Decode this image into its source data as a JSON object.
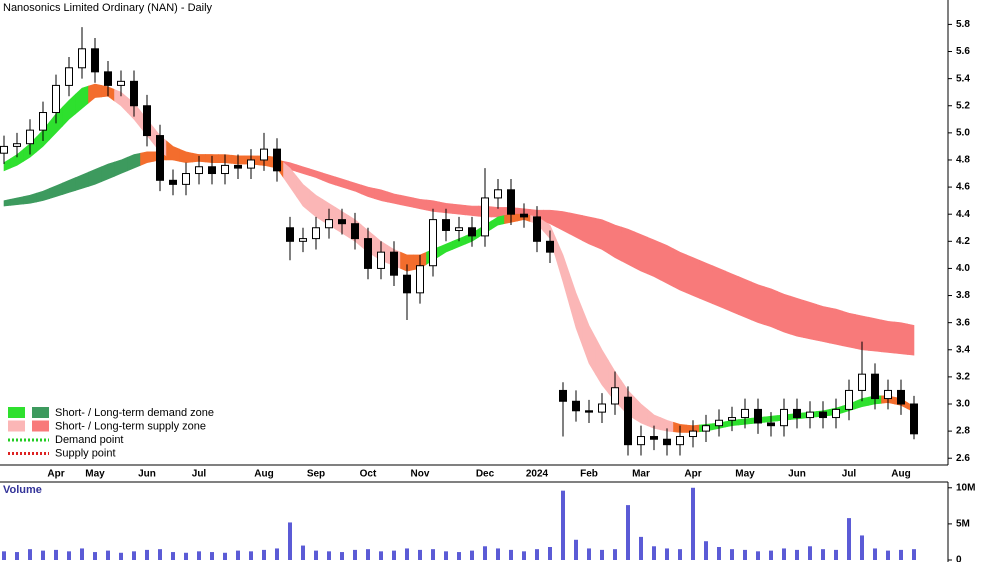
{
  "chart_data": [
    {
      "type": "candlestick",
      "title": "Nanosonics Limited Ordinary (NAN) - Daily",
      "categories": [
        null,
        null,
        null,
        null,
        "Apr",
        null,
        null,
        "May",
        null,
        null,
        null,
        "Jun",
        null,
        null,
        null,
        "Jul",
        null,
        null,
        null,
        null,
        "Aug",
        null,
        null,
        null,
        "Sep",
        null,
        null,
        null,
        "Oct",
        null,
        null,
        null,
        "Nov",
        null,
        null,
        null,
        null,
        "Dec",
        null,
        null,
        null,
        "2024",
        null,
        null,
        null,
        "Feb",
        null,
        null,
        null,
        "Mar",
        null,
        null,
        null,
        "Apr",
        null,
        null,
        null,
        "May",
        null,
        null,
        null,
        "Jun",
        null,
        null,
        null,
        "Jul",
        null,
        null,
        null,
        "Aug",
        null
      ],
      "open": [
        4.85,
        4.9,
        4.92,
        5.02,
        5.15,
        5.35,
        5.48,
        5.62,
        5.45,
        5.35,
        5.38,
        5.2,
        4.98,
        4.65,
        4.62,
        4.7,
        4.75,
        4.7,
        4.76,
        4.74,
        4.8,
        4.88,
        4.3,
        4.2,
        4.22,
        4.3,
        4.36,
        4.33,
        4.22,
        4.0,
        4.12,
        3.95,
        3.82,
        4.02,
        4.36,
        4.28,
        4.3,
        4.24,
        4.52,
        4.58,
        4.4,
        4.38,
        4.2,
        3.1,
        3.02,
        2.95,
        2.94,
        3.0,
        3.05,
        2.7,
        2.76,
        2.74,
        2.7,
        2.76,
        2.8,
        2.84,
        2.88,
        2.9,
        2.96,
        2.86,
        2.84,
        2.96,
        2.9,
        2.94,
        2.9,
        2.96,
        3.1,
        3.22,
        3.04,
        3.1,
        3.0
      ],
      "high": [
        4.98,
        5.0,
        5.1,
        5.23,
        5.43,
        5.56,
        5.78,
        5.7,
        5.53,
        5.46,
        5.46,
        5.28,
        5.06,
        4.73,
        4.78,
        4.83,
        4.83,
        4.84,
        4.84,
        4.88,
        5.0,
        4.96,
        4.38,
        4.3,
        4.38,
        4.44,
        4.44,
        4.41,
        4.3,
        4.2,
        4.2,
        4.03,
        4.1,
        4.44,
        4.44,
        4.38,
        4.38,
        4.74,
        4.66,
        4.66,
        4.48,
        4.46,
        4.28,
        3.16,
        3.1,
        3.03,
        3.08,
        3.24,
        3.13,
        2.84,
        2.84,
        2.82,
        2.84,
        2.88,
        2.92,
        2.96,
        2.98,
        3.04,
        3.04,
        2.94,
        3.04,
        3.04,
        3.02,
        3.02,
        3.04,
        3.18,
        3.46,
        3.3,
        3.18,
        3.18,
        3.06
      ],
      "low": [
        4.77,
        4.82,
        4.84,
        4.94,
        5.07,
        5.27,
        5.4,
        5.37,
        5.27,
        5.27,
        5.12,
        4.9,
        4.57,
        4.54,
        4.54,
        4.62,
        4.62,
        4.62,
        4.66,
        4.66,
        4.72,
        4.64,
        4.06,
        4.12,
        4.14,
        4.22,
        4.25,
        4.14,
        3.92,
        3.92,
        3.87,
        3.62,
        3.74,
        3.94,
        4.2,
        4.2,
        4.16,
        4.16,
        4.44,
        4.32,
        4.3,
        4.12,
        4.04,
        2.76,
        2.87,
        2.86,
        2.86,
        2.92,
        2.62,
        2.62,
        2.66,
        2.62,
        2.62,
        2.68,
        2.72,
        2.76,
        2.8,
        2.82,
        2.78,
        2.76,
        2.76,
        2.82,
        2.82,
        2.82,
        2.82,
        2.88,
        3.02,
        2.96,
        2.96,
        2.92,
        2.74
      ],
      "close": [
        4.9,
        4.92,
        5.02,
        5.15,
        5.35,
        5.48,
        5.62,
        5.45,
        5.35,
        5.38,
        5.2,
        4.98,
        4.65,
        4.62,
        4.7,
        4.75,
        4.7,
        4.76,
        4.74,
        4.8,
        4.88,
        4.72,
        4.2,
        4.22,
        4.3,
        4.36,
        4.33,
        4.22,
        4.0,
        4.12,
        3.95,
        3.82,
        4.02,
        4.36,
        4.28,
        4.3,
        4.24,
        4.52,
        4.58,
        4.4,
        4.38,
        4.2,
        4.12,
        3.02,
        2.95,
        2.94,
        3.0,
        3.12,
        2.7,
        2.76,
        2.74,
        2.7,
        2.76,
        2.8,
        2.84,
        2.88,
        2.9,
        2.96,
        2.86,
        2.84,
        2.96,
        2.9,
        2.94,
        2.9,
        2.96,
        3.1,
        3.22,
        3.04,
        3.1,
        3.0,
        2.78
      ],
      "up_color": "#ffffff",
      "down_color": "#000000",
      "wick_color": "#000000",
      "zones": {
        "long_term": {
          "upper": [
            4.5,
            4.52,
            4.54,
            4.57,
            4.61,
            4.65,
            4.69,
            4.73,
            4.77,
            4.8,
            4.84,
            4.86,
            4.86,
            4.85,
            4.85,
            4.84,
            4.84,
            4.84,
            4.83,
            4.83,
            4.82,
            4.8,
            4.78,
            4.75,
            4.72,
            4.69,
            4.66,
            4.63,
            4.6,
            4.58,
            4.55,
            4.53,
            4.51,
            4.5,
            4.48,
            4.47,
            4.46,
            4.46,
            4.45,
            4.45,
            4.44,
            4.43,
            4.43,
            4.42,
            4.4,
            4.38,
            4.36,
            4.32,
            4.29,
            4.25,
            4.21,
            4.17,
            4.12,
            4.08,
            4.04,
            4.0,
            3.96,
            3.92,
            3.88,
            3.85,
            3.81,
            3.78,
            3.75,
            3.72,
            3.7,
            3.67,
            3.65,
            3.63,
            3.61,
            3.6,
            3.58
          ],
          "lower": [
            4.46,
            4.47,
            4.48,
            4.5,
            4.53,
            4.56,
            4.59,
            4.62,
            4.66,
            4.7,
            4.74,
            4.78,
            4.8,
            4.8,
            4.8,
            4.79,
            4.79,
            4.78,
            4.78,
            4.77,
            4.76,
            4.75,
            4.73,
            4.7,
            4.67,
            4.63,
            4.6,
            4.57,
            4.53,
            4.5,
            4.48,
            4.46,
            4.44,
            4.42,
            4.41,
            4.4,
            4.39,
            4.38,
            4.38,
            4.37,
            4.36,
            4.36,
            4.33,
            4.28,
            4.23,
            4.18,
            4.14,
            4.08,
            4.03,
            3.98,
            3.94,
            3.89,
            3.84,
            3.8,
            3.76,
            3.72,
            3.68,
            3.64,
            3.6,
            3.57,
            3.53,
            3.5,
            3.48,
            3.46,
            3.44,
            3.42,
            3.4,
            3.39,
            3.38,
            3.37,
            3.36
          ],
          "colors": [
            "#3d9a5e",
            "#3d9a5e",
            "#3d9a5e",
            "#3d9a5e",
            "#3d9a5e",
            "#3d9a5e",
            "#3d9a5e",
            "#3d9a5e",
            "#3d9a5e",
            "#3d9a5e",
            "#3d9a5e",
            "#f36d2d",
            "#f36d2d",
            "#f36d2d",
            "#f36d2d",
            "#f36d2d",
            "#f36d2d",
            "#f36d2d",
            "#f36d2d",
            "#f36d2d",
            "#f36d2d",
            "#f36d2d",
            "#f87a7a",
            "#f87a7a",
            "#f87a7a",
            "#f87a7a",
            "#f87a7a",
            "#f87a7a",
            "#f87a7a",
            "#f87a7a",
            "#f87a7a",
            "#f87a7a",
            "#f87a7a",
            "#f87a7a",
            "#f87a7a",
            "#f87a7a",
            "#f87a7a",
            "#f87a7a",
            "#f87a7a",
            "#f87a7a",
            "#f87a7a",
            "#f87a7a",
            "#f87a7a",
            "#f87a7a",
            "#f87a7a",
            "#f87a7a",
            "#f87a7a",
            "#f87a7a",
            "#f87a7a",
            "#f87a7a",
            "#f87a7a",
            "#f87a7a",
            "#f87a7a",
            "#f87a7a",
            "#f87a7a",
            "#f87a7a",
            "#f87a7a",
            "#f87a7a",
            "#f87a7a",
            "#f87a7a",
            "#f87a7a",
            "#f87a7a",
            "#f87a7a",
            "#f87a7a",
            "#f87a7a",
            "#f87a7a",
            "#f87a7a",
            "#f87a7a",
            "#f87a7a",
            "#f87a7a",
            "#f87a7a"
          ]
        },
        "short_term": {
          "upper": [
            4.78,
            4.84,
            4.92,
            5.02,
            5.14,
            5.24,
            5.33,
            5.36,
            5.34,
            5.3,
            5.22,
            5.1,
            4.98,
            4.9,
            4.86,
            4.84,
            4.84,
            4.83,
            4.83,
            4.83,
            4.83,
            4.82,
            4.74,
            4.62,
            4.54,
            4.48,
            4.42,
            4.36,
            4.28,
            4.2,
            4.14,
            4.1,
            4.1,
            4.14,
            4.18,
            4.22,
            4.26,
            4.32,
            4.38,
            4.4,
            4.4,
            4.38,
            4.32,
            4.1,
            3.82,
            3.58,
            3.4,
            3.24,
            3.1,
            3.0,
            2.92,
            2.88,
            2.85,
            2.84,
            2.85,
            2.86,
            2.88,
            2.89,
            2.9,
            2.91,
            2.92,
            2.93,
            2.94,
            2.95,
            2.97,
            3.0,
            3.04,
            3.06,
            3.06,
            3.04,
            2.98
          ],
          "lower": [
            4.72,
            4.76,
            4.82,
            4.9,
            5.0,
            5.1,
            5.18,
            5.26,
            5.27,
            5.2,
            5.1,
            4.98,
            4.86,
            4.8,
            4.78,
            4.79,
            4.78,
            4.78,
            4.77,
            4.77,
            4.76,
            4.74,
            4.6,
            4.46,
            4.38,
            4.32,
            4.26,
            4.2,
            4.12,
            4.06,
            4.02,
            3.98,
            4.0,
            4.06,
            4.12,
            4.16,
            4.2,
            4.26,
            4.32,
            4.34,
            4.36,
            4.33,
            4.22,
            3.9,
            3.56,
            3.3,
            3.14,
            3.02,
            2.92,
            2.86,
            2.82,
            2.8,
            2.79,
            2.79,
            2.8,
            2.82,
            2.84,
            2.85,
            2.86,
            2.87,
            2.88,
            2.89,
            2.9,
            2.91,
            2.92,
            2.95,
            2.98,
            3.0,
            3.01,
            2.99,
            2.94
          ],
          "colors": [
            "#2ee02e",
            "#2ee02e",
            "#2ee02e",
            "#2ee02e",
            "#2ee02e",
            "#2ee02e",
            "#2ee02e",
            "#f36d2d",
            "#f36d2d",
            "#fbb6b6",
            "#fbb6b6",
            "#fbb6b6",
            "#fbb6b6",
            "#f36d2d",
            "#f36d2d",
            "#f36d2d",
            "#f36d2d",
            "#f36d2d",
            "#f36d2d",
            "#f36d2d",
            "#f36d2d",
            "#f36d2d",
            "#fbb6b6",
            "#fbb6b6",
            "#fbb6b6",
            "#fbb6b6",
            "#fbb6b6",
            "#fbb6b6",
            "#fbb6b6",
            "#fbb6b6",
            "#fbb6b6",
            "#f36d2d",
            "#f36d2d",
            "#2ee02e",
            "#2ee02e",
            "#2ee02e",
            "#2ee02e",
            "#2ee02e",
            "#2ee02e",
            "#f36d2d",
            "#f36d2d",
            "#fbb6b6",
            "#fbb6b6",
            "#fbb6b6",
            "#fbb6b6",
            "#fbb6b6",
            "#fbb6b6",
            "#fbb6b6",
            "#fbb6b6",
            "#fbb6b6",
            "#fbb6b6",
            "#fbb6b6",
            "#f36d2d",
            "#f36d2d",
            "#2ee02e",
            "#2ee02e",
            "#2ee02e",
            "#2ee02e",
            "#2ee02e",
            "#2ee02e",
            "#2ee02e",
            "#2ee02e",
            "#2ee02e",
            "#2ee02e",
            "#2ee02e",
            "#2ee02e",
            "#2ee02e",
            "#2ee02e",
            "#f36d2d",
            "#f36d2d",
            "#f36d2d"
          ]
        }
      },
      "ylim": [
        2.55,
        5.98
      ],
      "yticks": [
        5.8,
        5.6,
        5.4,
        5.2,
        {
          "value": 5,
          "label": "5.0"
        },
        4.8,
        4.6,
        4.4,
        4.2,
        {
          "value": 4,
          "label": "4.0"
        },
        3.8,
        3.6,
        3.4,
        3.2,
        {
          "value": 3,
          "label": "3.0"
        },
        2.8,
        2.6
      ],
      "legend": [
        {
          "label": "Short- / Long-term demand zone",
          "colors": [
            "#2ee02e",
            "#3d9a5e"
          ]
        },
        {
          "label": "Short- / Long-term supply zone",
          "colors": [
            "#fbb6b6",
            "#f87a7a"
          ]
        },
        {
          "label": "Demand point",
          "color": "#22cc22",
          "dash": "dotted"
        },
        {
          "label": "Supply point",
          "color": "#dd2222",
          "dash": "dotted"
        }
      ]
    },
    {
      "type": "bar",
      "title": "Volume",
      "values": [
        1200000,
        1100000,
        1500000,
        1300000,
        1400000,
        1200000,
        1600000,
        1100000,
        1300000,
        1000000,
        1200000,
        1400000,
        1500000,
        1100000,
        1000000,
        1200000,
        1100000,
        1000000,
        1300000,
        1200000,
        1400000,
        1600000,
        5200000,
        2000000,
        1300000,
        1200000,
        1100000,
        1400000,
        1500000,
        1200000,
        1300000,
        1600000,
        1400000,
        1500000,
        1200000,
        1100000,
        1300000,
        1900000,
        1600000,
        1400000,
        1200000,
        1500000,
        1800000,
        9600000,
        2800000,
        1600000,
        1400000,
        1500000,
        7600000,
        3200000,
        1900000,
        1600000,
        1500000,
        10000000,
        2600000,
        1800000,
        1500000,
        1400000,
        1200000,
        1300000,
        1600000,
        1400000,
        1900000,
        1500000,
        1400000,
        5800000,
        3400000,
        1600000,
        1300000,
        1400000,
        1500000
      ],
      "color": "#5b5bd6",
      "ylim": [
        0,
        10800000
      ],
      "yticks": [
        {
          "value": 10000000,
          "label": "10M"
        },
        {
          "value": 5000000,
          "label": "5M"
        },
        0
      ]
    }
  ]
}
